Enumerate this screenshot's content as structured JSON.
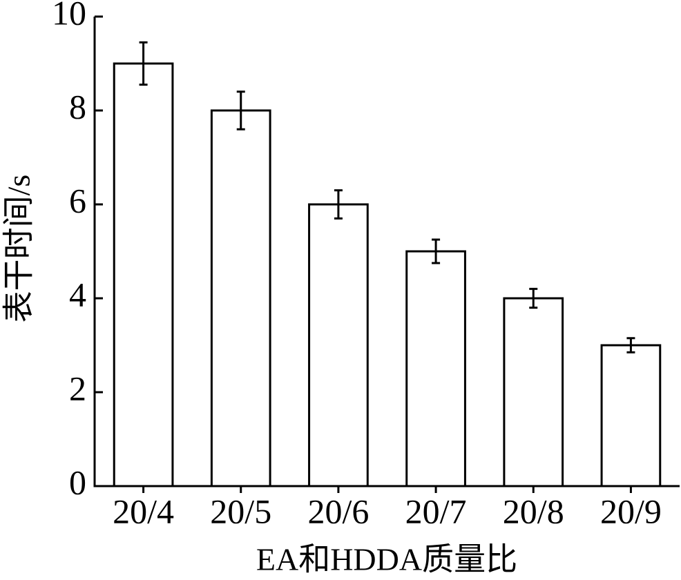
{
  "chart_data": {
    "type": "bar",
    "y_label": "表干时间/s",
    "x_label": "EA和HDDA质量比",
    "categories": [
      "20/4",
      "20/5",
      "20/6",
      "20/7",
      "20/8",
      "20/9"
    ],
    "values": [
      9,
      8,
      6,
      5,
      4,
      3
    ],
    "errors": [
      0.45,
      0.4,
      0.3,
      0.25,
      0.2,
      0.15
    ],
    "color": "#ffffff",
    "ylim": [
      0,
      10
    ],
    "yticks": [
      0,
      2,
      4,
      6,
      8,
      10
    ],
    "grid": false
  }
}
